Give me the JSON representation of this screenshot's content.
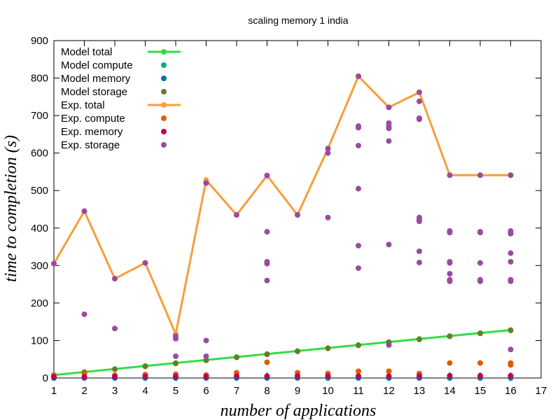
{
  "chart_data": {
    "type": "scatter",
    "title": "scaling memory 1 india",
    "xlabel": "number of applications",
    "ylabel": "time to completion (s)",
    "xlim": [
      1,
      17
    ],
    "ylim": [
      0,
      900
    ],
    "xticks": [
      1,
      2,
      3,
      4,
      5,
      6,
      7,
      8,
      9,
      10,
      11,
      12,
      13,
      14,
      15,
      16,
      17
    ],
    "yticks": [
      0,
      100,
      200,
      300,
      400,
      500,
      600,
      700,
      800,
      900
    ],
    "legend_position": "top-left",
    "series": [
      {
        "name": "Model total",
        "color": "#33dd44",
        "style": "line-points",
        "points": [
          [
            1,
            8
          ],
          [
            2,
            16
          ],
          [
            3,
            24
          ],
          [
            4,
            32
          ],
          [
            5,
            40
          ],
          [
            6,
            48
          ],
          [
            7,
            56
          ],
          [
            8,
            64
          ],
          [
            9,
            72
          ],
          [
            10,
            80
          ],
          [
            11,
            88
          ],
          [
            12,
            96
          ],
          [
            13,
            104
          ],
          [
            14,
            112
          ],
          [
            15,
            120
          ],
          [
            16,
            128
          ]
        ]
      },
      {
        "name": "Model compute",
        "color": "#00b278",
        "style": "points",
        "points": [
          [
            1,
            1
          ],
          [
            2,
            1
          ],
          [
            3,
            1
          ],
          [
            4,
            1
          ],
          [
            5,
            1
          ],
          [
            6,
            1
          ],
          [
            7,
            1
          ],
          [
            8,
            1
          ],
          [
            9,
            1
          ],
          [
            10,
            1
          ],
          [
            11,
            1
          ],
          [
            12,
            1
          ],
          [
            13,
            1
          ],
          [
            14,
            1
          ],
          [
            15,
            1
          ],
          [
            16,
            1
          ]
        ]
      },
      {
        "name": "Model memory",
        "color": "#0072b2",
        "style": "points",
        "points": [
          [
            1,
            0
          ],
          [
            2,
            0
          ],
          [
            3,
            0
          ],
          [
            4,
            0
          ],
          [
            5,
            0
          ],
          [
            6,
            0
          ],
          [
            7,
            0
          ],
          [
            8,
            0
          ],
          [
            9,
            0
          ],
          [
            10,
            0
          ],
          [
            11,
            0
          ],
          [
            12,
            0
          ],
          [
            13,
            0
          ],
          [
            14,
            0
          ],
          [
            15,
            0
          ],
          [
            16,
            0
          ]
        ]
      },
      {
        "name": "Model storage",
        "color": "#6b7a2a",
        "style": "points",
        "points": [
          [
            1,
            7
          ],
          [
            2,
            15
          ],
          [
            3,
            23
          ],
          [
            4,
            31
          ],
          [
            5,
            39
          ],
          [
            6,
            47
          ],
          [
            7,
            55
          ],
          [
            8,
            63
          ],
          [
            9,
            71
          ],
          [
            10,
            79
          ],
          [
            11,
            87
          ],
          [
            12,
            95
          ],
          [
            13,
            103
          ],
          [
            14,
            111
          ],
          [
            15,
            119
          ],
          [
            16,
            127
          ]
        ]
      },
      {
        "name": "Exp.  total",
        "color": "#f99d3a",
        "style": "line-points",
        "points": [
          [
            1,
            305
          ],
          [
            2,
            445
          ],
          [
            3,
            265
          ],
          [
            4,
            307
          ],
          [
            5,
            117
          ],
          [
            6,
            528
          ],
          [
            7,
            435
          ],
          [
            8,
            540
          ],
          [
            9,
            435
          ],
          [
            10,
            612
          ],
          [
            11,
            805
          ],
          [
            12,
            722
          ],
          [
            13,
            762
          ],
          [
            14,
            541
          ],
          [
            15,
            541
          ],
          [
            16,
            541
          ]
        ]
      },
      {
        "name": "Exp.  compute",
        "color": "#e05a0a",
        "style": "points",
        "points": [
          [
            1,
            6
          ],
          [
            2,
            12
          ],
          [
            3,
            7
          ],
          [
            4,
            9
          ],
          [
            5,
            10
          ],
          [
            6,
            8
          ],
          [
            7,
            14
          ],
          [
            8,
            42
          ],
          [
            9,
            14
          ],
          [
            10,
            12
          ],
          [
            11,
            18
          ],
          [
            12,
            18
          ],
          [
            13,
            12
          ],
          [
            14,
            40
          ],
          [
            15,
            40
          ],
          [
            16,
            40
          ],
          [
            16,
            35
          ]
        ]
      },
      {
        "name": "Exp.  memory",
        "color": "#c0004e",
        "style": "points",
        "points": [
          [
            1,
            3
          ],
          [
            2,
            3
          ],
          [
            3,
            4
          ],
          [
            4,
            4
          ],
          [
            5,
            4
          ],
          [
            6,
            4
          ],
          [
            7,
            5
          ],
          [
            8,
            5
          ],
          [
            9,
            5
          ],
          [
            10,
            5
          ],
          [
            11,
            5
          ],
          [
            12,
            5
          ],
          [
            13,
            5
          ],
          [
            14,
            6
          ],
          [
            15,
            6
          ],
          [
            16,
            6
          ]
        ]
      },
      {
        "name": "Exp.  storage",
        "color": "#9b4aa0",
        "style": "points",
        "points": [
          [
            1,
            305
          ],
          [
            2,
            445
          ],
          [
            2,
            170
          ],
          [
            3,
            265
          ],
          [
            3,
            132
          ],
          [
            4,
            307
          ],
          [
            5,
            112
          ],
          [
            5,
            105
          ],
          [
            5,
            58
          ],
          [
            6,
            520
          ],
          [
            6,
            100
          ],
          [
            6,
            58
          ],
          [
            7,
            435
          ],
          [
            8,
            540
          ],
          [
            8,
            390
          ],
          [
            8,
            310
          ],
          [
            8,
            305
          ],
          [
            8,
            260
          ],
          [
            9,
            435
          ],
          [
            10,
            612
          ],
          [
            10,
            600
          ],
          [
            10,
            428
          ],
          [
            11,
            805
          ],
          [
            11,
            672
          ],
          [
            11,
            668
          ],
          [
            11,
            620
          ],
          [
            11,
            505
          ],
          [
            11,
            353
          ],
          [
            11,
            293
          ],
          [
            12,
            722
          ],
          [
            12,
            680
          ],
          [
            12,
            672
          ],
          [
            12,
            666
          ],
          [
            12,
            632
          ],
          [
            12,
            356
          ],
          [
            12,
            88
          ],
          [
            13,
            762
          ],
          [
            13,
            738
          ],
          [
            13,
            693
          ],
          [
            13,
            690
          ],
          [
            13,
            428
          ],
          [
            13,
            422
          ],
          [
            13,
            418
          ],
          [
            13,
            338
          ],
          [
            13,
            308
          ],
          [
            14,
            541
          ],
          [
            14,
            392
          ],
          [
            14,
            388
          ],
          [
            14,
            310
          ],
          [
            14,
            307
          ],
          [
            14,
            278
          ],
          [
            14,
            262
          ],
          [
            14,
            258
          ],
          [
            15,
            541
          ],
          [
            15,
            390
          ],
          [
            15,
            388
          ],
          [
            15,
            307
          ],
          [
            15,
            262
          ],
          [
            15,
            258
          ],
          [
            16,
            541
          ],
          [
            16,
            392
          ],
          [
            16,
            388
          ],
          [
            16,
            385
          ],
          [
            16,
            333
          ],
          [
            16,
            310
          ],
          [
            16,
            262
          ],
          [
            16,
            258
          ],
          [
            16,
            76
          ]
        ]
      }
    ]
  }
}
